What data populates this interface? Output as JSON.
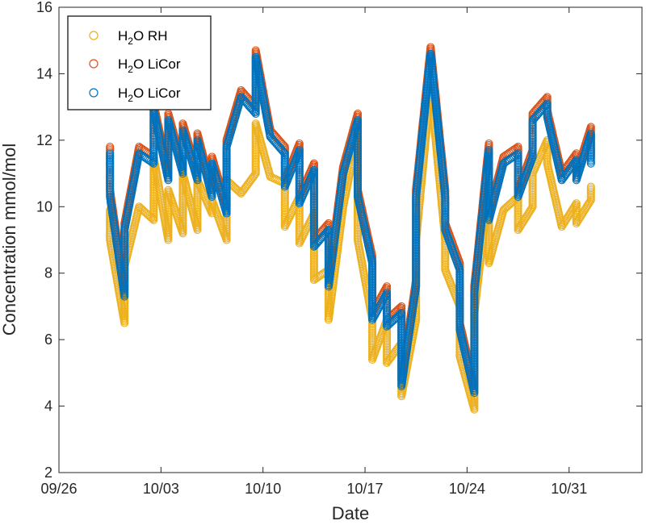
{
  "chart_data": {
    "type": "scatter",
    "xlabel": "Date",
    "ylabel": "Concentration mmol/mol",
    "ylim": [
      2,
      16
    ],
    "yticks": [
      2,
      4,
      6,
      8,
      10,
      12,
      14,
      16
    ],
    "xlim": [
      "09/26",
      "11/05"
    ],
    "xticks": [
      "09/26",
      "10/03",
      "10/10",
      "10/17",
      "10/24",
      "10/31"
    ],
    "grid": false,
    "legend_position": "top-left",
    "marker": "open-circle",
    "series": [
      {
        "name": "H2O RH",
        "legend_main": "H",
        "legend_sub": "2",
        "legend_rest": "O RH",
        "color": "#EDB120",
        "x": [
          "09/29",
          "09/29",
          "09/30",
          "09/30",
          "10/01",
          "10/02",
          "10/02",
          "10/03",
          "10/03",
          "10/04",
          "10/04",
          "10/05",
          "10/05",
          "10/06",
          "10/06",
          "10/07",
          "10/07",
          "10/08",
          "10/09",
          "10/09",
          "10/10",
          "10/11",
          "10/11",
          "10/12",
          "10/12",
          "10/13",
          "10/13",
          "10/14",
          "10/14",
          "10/15",
          "10/16",
          "10/16",
          "10/17",
          "10/17",
          "10/18",
          "10/18",
          "10/19",
          "10/19",
          "10/20",
          "10/20",
          "10/21",
          "10/22",
          "10/22",
          "10/23",
          "10/23",
          "10/24",
          "10/24",
          "10/25",
          "10/25",
          "10/26",
          "10/27",
          "10/27",
          "10/28",
          "10/28",
          "10/29",
          "10/29",
          "10/30",
          "10/31",
          "10/31",
          "11/01",
          "11/01"
        ],
        "y": [
          9.9,
          9.0,
          6.5,
          8.2,
          10.0,
          9.6,
          11.5,
          9.0,
          10.5,
          9.2,
          11.0,
          9.3,
          10.8,
          9.8,
          10.2,
          9.0,
          10.8,
          10.4,
          11.0,
          12.5,
          10.9,
          10.7,
          9.4,
          10.3,
          8.9,
          9.8,
          7.8,
          8.1,
          6.6,
          10.0,
          12.2,
          9.0,
          6.6,
          5.4,
          6.6,
          5.3,
          5.9,
          4.3,
          6.6,
          9.0,
          13.6,
          9.0,
          8.1,
          7.0,
          5.5,
          3.9,
          6.8,
          10.6,
          8.3,
          9.9,
          10.3,
          9.3,
          10.0,
          11.0,
          12.0,
          11.3,
          9.4,
          10.1,
          9.5,
          10.2,
          10.6
        ]
      },
      {
        "name": "H2O LiCor",
        "legend_main": "H",
        "legend_sub": "2",
        "legend_rest": "O LiCor",
        "color": "#D95319",
        "x": [
          "09/29",
          "09/29",
          "09/30",
          "09/30",
          "10/01",
          "10/02",
          "10/02",
          "10/03",
          "10/03",
          "10/04",
          "10/04",
          "10/05",
          "10/05",
          "10/06",
          "10/06",
          "10/07",
          "10/07",
          "10/08",
          "10/09",
          "10/09",
          "10/10",
          "10/11",
          "10/11",
          "10/12",
          "10/12",
          "10/13",
          "10/13",
          "10/14",
          "10/14",
          "10/15",
          "10/16",
          "10/16",
          "10/17",
          "10/17",
          "10/18",
          "10/18",
          "10/19",
          "10/19",
          "10/20",
          "10/20",
          "10/21",
          "10/22",
          "10/22",
          "10/23",
          "10/23",
          "10/24",
          "10/24",
          "10/25",
          "10/25",
          "10/26",
          "10/27",
          "10/27",
          "10/28",
          "10/28",
          "10/29",
          "10/29",
          "10/30",
          "10/31",
          "10/31",
          "11/01",
          "11/01"
        ],
        "y": [
          11.8,
          10.5,
          7.5,
          9.5,
          11.8,
          11.5,
          13.1,
          11.0,
          12.8,
          11.2,
          12.5,
          11.0,
          12.2,
          10.5,
          11.5,
          10.0,
          12.0,
          13.5,
          13.0,
          14.7,
          12.3,
          11.8,
          10.8,
          11.9,
          10.3,
          11.3,
          9.0,
          9.5,
          7.8,
          11.2,
          12.8,
          10.5,
          8.5,
          6.8,
          7.6,
          6.6,
          7.0,
          4.8,
          7.8,
          10.5,
          14.8,
          10.5,
          9.5,
          8.3,
          6.5,
          4.6,
          7.6,
          11.9,
          9.8,
          11.5,
          11.8,
          10.5,
          11.7,
          12.8,
          13.3,
          12.9,
          11.0,
          11.6,
          11.0,
          12.4,
          11.5
        ]
      },
      {
        "name": "H2O LiCor",
        "legend_main": "H",
        "legend_sub": "2",
        "legend_rest": "O LiCor",
        "color": "#0072BD",
        "x": [
          "09/29",
          "09/29",
          "09/30",
          "09/30",
          "10/01",
          "10/02",
          "10/02",
          "10/03",
          "10/03",
          "10/04",
          "10/04",
          "10/05",
          "10/05",
          "10/06",
          "10/06",
          "10/07",
          "10/07",
          "10/08",
          "10/09",
          "10/09",
          "10/10",
          "10/11",
          "10/11",
          "10/12",
          "10/12",
          "10/13",
          "10/13",
          "10/14",
          "10/14",
          "10/15",
          "10/16",
          "10/16",
          "10/17",
          "10/17",
          "10/18",
          "10/18",
          "10/19",
          "10/19",
          "10/20",
          "10/20",
          "10/21",
          "10/22",
          "10/22",
          "10/23",
          "10/23",
          "10/24",
          "10/24",
          "10/25",
          "10/25",
          "10/26",
          "10/27",
          "10/27",
          "10/28",
          "10/28",
          "10/29",
          "10/29",
          "10/30",
          "10/31",
          "10/31",
          "11/01",
          "11/01"
        ],
        "y": [
          11.6,
          10.3,
          7.3,
          9.3,
          11.6,
          11.3,
          12.9,
          10.8,
          12.6,
          11.0,
          12.3,
          10.8,
          12.0,
          10.3,
          11.3,
          9.8,
          11.8,
          13.3,
          12.8,
          14.5,
          12.1,
          11.6,
          10.6,
          11.7,
          10.1,
          11.1,
          8.8,
          9.3,
          7.6,
          11.0,
          12.6,
          10.3,
          8.3,
          6.6,
          7.4,
          6.4,
          6.8,
          4.6,
          7.6,
          10.3,
          14.6,
          10.3,
          9.3,
          8.1,
          6.3,
          4.4,
          7.4,
          11.7,
          9.6,
          11.3,
          11.6,
          10.3,
          11.5,
          12.6,
          13.1,
          12.7,
          10.8,
          11.4,
          10.8,
          12.2,
          11.3
        ]
      }
    ]
  }
}
